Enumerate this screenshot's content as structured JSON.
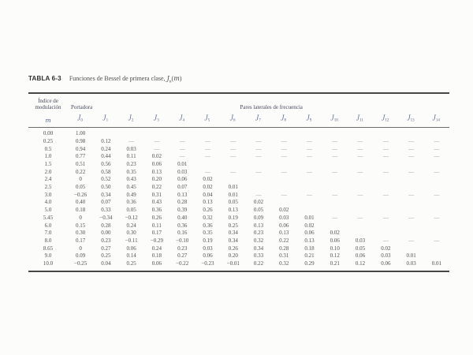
{
  "title": {
    "tag": "TABLA 6-3",
    "caption": "Funciones de Bessel de primera clase,",
    "fn": {
      "base": "J",
      "sub": "n",
      "open": "(",
      "var": "m",
      "close": ")"
    }
  },
  "table": {
    "group_headers": {
      "modulacion_line1": "Índice de",
      "modulacion_line2": "modulación",
      "portadora": "Portadora",
      "pares": "Pares laterales de frecuencia"
    },
    "columns": [
      {
        "base": "m",
        "sub": ""
      },
      {
        "base": "J",
        "sub": "0"
      },
      {
        "base": "J",
        "sub": "1"
      },
      {
        "base": "J",
        "sub": "2"
      },
      {
        "base": "J",
        "sub": "3"
      },
      {
        "base": "J",
        "sub": "4"
      },
      {
        "base": "J",
        "sub": "5"
      },
      {
        "base": "J",
        "sub": "6"
      },
      {
        "base": "J",
        "sub": "7"
      },
      {
        "base": "J",
        "sub": "8"
      },
      {
        "base": "J",
        "sub": "9"
      },
      {
        "base": "J",
        "sub": "10"
      },
      {
        "base": "J",
        "sub": "11"
      },
      {
        "base": "J",
        "sub": "12"
      },
      {
        "base": "J",
        "sub": "13"
      },
      {
        "base": "J",
        "sub": "14"
      }
    ],
    "rows": [
      [
        "0.00",
        "1.00",
        "",
        "",
        "",
        "",
        "",
        "",
        "",
        "",
        "",
        "",
        "",
        "",
        "",
        ""
      ],
      [
        "0.25",
        "0.98",
        "0.12",
        "—",
        "—",
        "—",
        "—",
        "—",
        "—",
        "—",
        "—",
        "—",
        "—",
        "—",
        "—",
        "—"
      ],
      [
        "0.5",
        "0.94",
        "0.24",
        "0.03",
        "—",
        "—",
        "—",
        "—",
        "—",
        "—",
        "—",
        "—",
        "—",
        "—",
        "—",
        "—"
      ],
      [
        "1.0",
        "0.77",
        "0.44",
        "0.11",
        "0.02",
        "—",
        "—",
        "—",
        "—",
        "—",
        "—",
        "—",
        "—",
        "—",
        "—",
        "—"
      ],
      [
        "1.5",
        "0.51",
        "0.56",
        "0.23",
        "0.06",
        "0.01",
        "",
        "",
        "",
        "",
        "",
        "",
        "",
        "",
        "",
        ""
      ],
      [
        "2.0",
        "0.22",
        "0.58",
        "0.35",
        "0.13",
        "0.03",
        "—",
        "—",
        "—",
        "—",
        "—",
        "—",
        "—",
        "—",
        "—",
        "—"
      ],
      [
        "2.4",
        "0",
        "0.52",
        "0.43",
        "0.20",
        "0.06",
        "0.02",
        "",
        "",
        "",
        "",
        "",
        "",
        "",
        "",
        ""
      ],
      [
        "2.5",
        "0.05",
        "0.50",
        "0.45",
        "0.22",
        "0.07",
        "0.02",
        "0.01",
        "",
        "",
        "",
        "",
        "",
        "",
        "",
        ""
      ],
      [
        "3.0",
        "−0.26",
        "0.34",
        "0.49",
        "0.31",
        "0.13",
        "0.04",
        "0.01",
        "—",
        "—",
        "—",
        "—",
        "—",
        "—",
        "—",
        "—"
      ],
      [
        "4.0",
        "0.40",
        "0.07",
        "0.36",
        "0.43",
        "0.28",
        "0.13",
        "0.05",
        "0.02",
        "",
        "",
        "",
        "",
        "",
        "",
        ""
      ],
      [
        "5.0",
        "0.18",
        "0.33",
        "0.05",
        "0.36",
        "0.39",
        "0.26",
        "0.13",
        "0.05",
        "0.02",
        "",
        "",
        "",
        "",
        "",
        ""
      ],
      [
        "5.45",
        "0",
        "−0.34",
        "−0.12",
        "0.26",
        "0.40",
        "0.32",
        "0.19",
        "0.09",
        "0.03",
        "0.01",
        "—",
        "—",
        "—",
        "—",
        "—"
      ],
      [
        "6.0",
        "0.15",
        "0.28",
        "0.24",
        "0.11",
        "0.36",
        "0.36",
        "0.25",
        "0.13",
        "0.06",
        "0.02",
        "",
        "",
        "",
        "",
        ""
      ],
      [
        "7.0",
        "0.30",
        "0.00",
        "0.30",
        "0.17",
        "0.16",
        "0.35",
        "0.34",
        "0.23",
        "0.13",
        "0.06",
        "0.02",
        "",
        "",
        "",
        ""
      ],
      [
        "8.0",
        "0.17",
        "0.23",
        "−0.11",
        "−0.29",
        "−0.10",
        "0.19",
        "0.34",
        "0.32",
        "0.22",
        "0.13",
        "0.06",
        "0.03",
        "—",
        "—",
        "—"
      ],
      [
        "8.65",
        "0",
        "0.27",
        "0.06",
        "0.24",
        "0.23",
        "0.03",
        "0.26",
        "0.34",
        "0.28",
        "0.18",
        "0.10",
        "0.05",
        "0.02",
        "",
        ""
      ],
      [
        "9.0",
        "0.09",
        "0.25",
        "0.14",
        "0.18",
        "0.27",
        "0.06",
        "0.20",
        "0.33",
        "0.31",
        "0.21",
        "0.12",
        "0.06",
        "0.03",
        "0.01",
        ""
      ],
      [
        "10.0",
        "−0.25",
        "0.04",
        "0.25",
        "0.06",
        "−0.22",
        "−0.23",
        "−0.01",
        "0.22",
        "0.32",
        "0.29",
        "0.21",
        "0.12",
        "0.06",
        "0.03",
        "0.01"
      ]
    ]
  },
  "colors": {
    "bg": "#fcfcfb",
    "ink-title": "#2f2f2f",
    "ink-caption": "#4e4e4e",
    "ink-group": "#44485a",
    "ink-colhead": "#4f5d87",
    "ink-data": "#50504e",
    "ink-dash": "#8e8e8e",
    "rule-dark": "#474747",
    "rule-mid": "#6b6b6b"
  }
}
